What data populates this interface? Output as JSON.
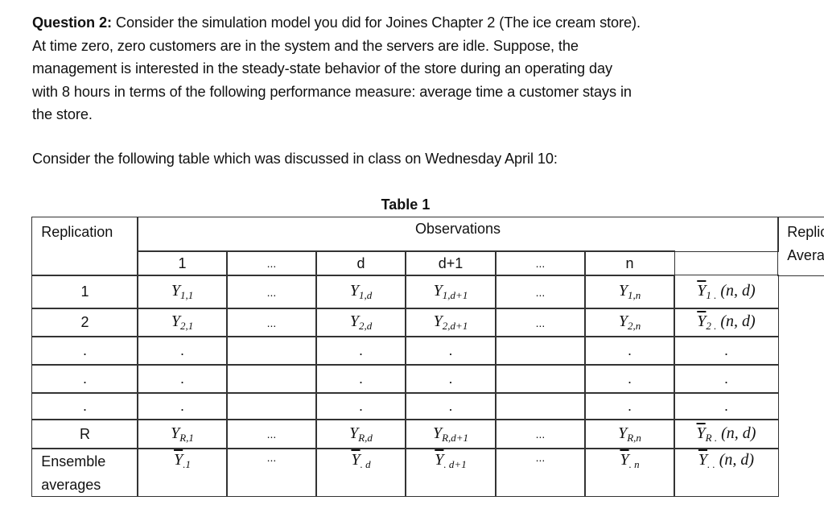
{
  "question": {
    "label": "Question 2:",
    "lines": [
      " Consider the simulation model you did for Joines Chapter 2 (The ice cream store).",
      "At time zero, zero customers are in the system and the servers are idle. Suppose, the",
      "management is interested in the steady-state behavior of the store during an operating day",
      "with 8 hours in terms of the following performance measure: average time a customer stays in",
      "the store."
    ],
    "intro": "Consider the following table which was discussed in class on Wednesday April 10:"
  },
  "table": {
    "title": "Table 1",
    "header_replication": "Replication",
    "header_observations": "Observations",
    "header_averages": [
      "Replication",
      "Averages"
    ],
    "columns": [
      "1",
      "...",
      "d",
      "d+1",
      "...",
      "n"
    ],
    "rows": [
      {
        "label": "1",
        "cells": [
          {
            "base": "Y",
            "sub": "1,1"
          },
          {
            "text": "..."
          },
          {
            "base": "Y",
            "sub": "1,d"
          },
          {
            "base": "Y",
            "sub": "1,d+1"
          },
          {
            "text": "..."
          },
          {
            "base": "Y",
            "sub": "1,n"
          },
          {
            "base": "Y",
            "bar": true,
            "sub": "1 .",
            "post": "(n, d)"
          }
        ]
      },
      {
        "label": "2",
        "cells": [
          {
            "base": "Y",
            "sub": "2,1"
          },
          {
            "text": "..."
          },
          {
            "base": "Y",
            "sub": "2,d"
          },
          {
            "base": "Y",
            "sub": "2,d+1"
          },
          {
            "text": "..."
          },
          {
            "base": "Y",
            "sub": "2,n"
          },
          {
            "base": "Y",
            "bar": true,
            "sub": "2 .",
            "post": "(n, d)"
          }
        ]
      },
      {
        "label": ".",
        "cells": [
          {
            "text": "."
          },
          {
            "text": ""
          },
          {
            "text": "."
          },
          {
            "text": "."
          },
          {
            "text": ""
          },
          {
            "text": "."
          },
          {
            "text": "."
          }
        ]
      },
      {
        "label": ".",
        "cells": [
          {
            "text": "."
          },
          {
            "text": ""
          },
          {
            "text": "."
          },
          {
            "text": "."
          },
          {
            "text": ""
          },
          {
            "text": "."
          },
          {
            "text": "."
          }
        ]
      },
      {
        "label": ".",
        "cells": [
          {
            "text": "."
          },
          {
            "text": ""
          },
          {
            "text": "."
          },
          {
            "text": "."
          },
          {
            "text": ""
          },
          {
            "text": "."
          },
          {
            "text": "."
          }
        ]
      },
      {
        "label": "R",
        "cells": [
          {
            "base": "Y",
            "sub": "R,1"
          },
          {
            "text": "..."
          },
          {
            "base": "Y",
            "sub": "R,d"
          },
          {
            "base": "Y",
            "sub": "R,d+1"
          },
          {
            "text": "..."
          },
          {
            "base": "Y",
            "sub": "R,n"
          },
          {
            "base": "Y",
            "bar": true,
            "sub": "R .",
            "post": "(n, d)"
          }
        ]
      },
      {
        "label": [
          "Ensemble",
          "averages"
        ],
        "cells": [
          {
            "base": "Y",
            "bar": true,
            "sub": ".1"
          },
          {
            "text": "..."
          },
          {
            "base": "Y",
            "bar": true,
            "sub": ". d"
          },
          {
            "base": "Y",
            "bar": true,
            "sub": ". d+1"
          },
          {
            "text": "..."
          },
          {
            "base": "Y",
            "bar": true,
            "sub": ". n"
          },
          {
            "base": "Y",
            "bar": true,
            "sub": ". .",
            "post": "(n, d)"
          }
        ]
      }
    ]
  }
}
